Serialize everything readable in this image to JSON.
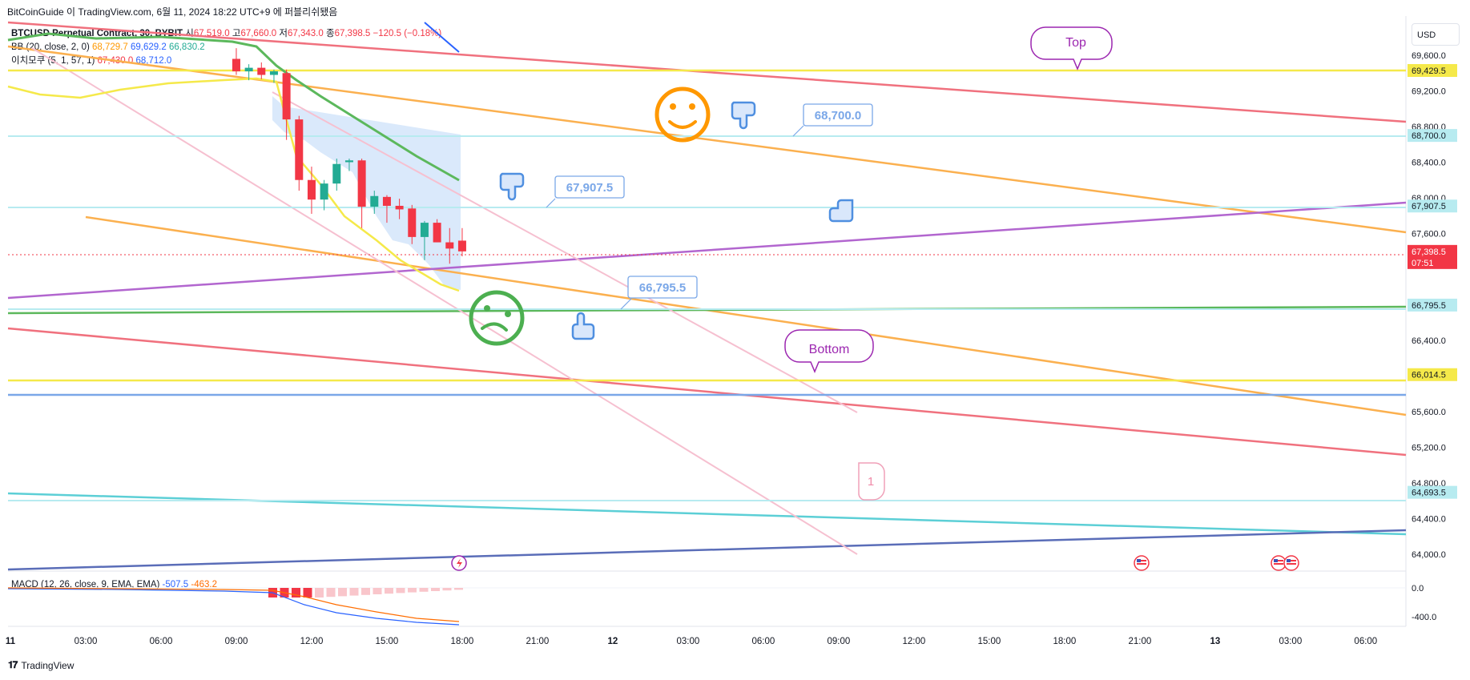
{
  "attribution": "BitCoinGuide 이 TradingView.com, 6월 11, 2024 18:22 UTC+9 에 퍼블리쉬됐음",
  "legend": {
    "symbol": "BTCUSD Perpetual Contract, 30, BYBIT",
    "open_label": "시",
    "open": "67,519.0",
    "high_label": "고",
    "high": "67,660.0",
    "low_label": "저",
    "low": "67,343.0",
    "close_label": "종",
    "close": "67,398.5",
    "change": "−120.5 (−0.18%)",
    "bb": "BB (20, close, 2, 0)",
    "bb_values": [
      "68,729.7",
      "69,629.2",
      "66,830.2"
    ],
    "ichimoku": "이치모쿠 (5, 1, 57, 1)",
    "ichimoku_values": [
      "67,430.0",
      "68,712.0"
    ]
  },
  "macd": {
    "label": "MACD (12, 26, close, 9, EMA, EMA)",
    "values": [
      "-507.5",
      "-463.2"
    ]
  },
  "currency": "USD",
  "footer": "TradingView",
  "colors": {
    "up": "#22ab94",
    "down": "#f23645",
    "line_red": "#f0717e",
    "line_orange": "#fbb04f",
    "line_yellow": "#f5e94a",
    "line_purple": "#b266cf",
    "line_green": "#5cb85c",
    "line_cyan": "#5ccfd6",
    "line_navy": "#5a6db8",
    "line_pink": "#f6c0d0",
    "line_lightblue": "#7aa7e8"
  },
  "chart_data": {
    "type": "candlestick",
    "timeframe": "30",
    "price_axis": {
      "ticks": [
        "69,600.0",
        "69,200.0",
        "68,800.0",
        "68,400.0",
        "68,000.0",
        "67,600.0",
        "66,400.0",
        "66,000.0",
        "65,600.0",
        "65,200.0",
        "64,800.0",
        "64,400.0",
        "64,000.0"
      ],
      "range": [
        63900,
        69800
      ]
    },
    "price_labels": [
      {
        "value": 69429.5,
        "text": "69,429.5",
        "bg": "#f5e94a",
        "fg": "#131722"
      },
      {
        "value": 68700.0,
        "text": "68,700.0",
        "bg": "#b7ebf0",
        "fg": "#131722"
      },
      {
        "value": 67907.5,
        "text": "67,907.5",
        "bg": "#b7ebf0",
        "fg": "#131722"
      },
      {
        "value": 67398.5,
        "text": "67,398.5",
        "bg": "#f23645",
        "fg": "#ffffff",
        "sub": "07:51"
      },
      {
        "value": 66795.5,
        "text": "66,795.5",
        "bg": "#b7ebf0",
        "fg": "#131722"
      },
      {
        "value": 66014.5,
        "text": "66,014.5",
        "bg": "#f5e94a",
        "fg": "#131722"
      },
      {
        "value": 64693.5,
        "text": "64,693.5",
        "bg": "#b7ebf0",
        "fg": "#131722"
      }
    ],
    "time_axis": [
      "11",
      "03:00",
      "06:00",
      "09:00",
      "12:00",
      "15:00",
      "18:00",
      "21:00",
      "12",
      "03:00",
      "06:00",
      "09:00",
      "12:00",
      "15:00",
      "18:00",
      "21:00",
      "13",
      "03:00",
      "06:00"
    ],
    "macd_axis": [
      "0.0",
      "-400.0"
    ],
    "candles": [
      {
        "t": 9.0,
        "o": 69560,
        "h": 69680,
        "l": 69380,
        "c": 69420
      },
      {
        "t": 9.5,
        "o": 69420,
        "h": 69500,
        "l": 69320,
        "c": 69460
      },
      {
        "t": 10.0,
        "o": 69460,
        "h": 69520,
        "l": 69330,
        "c": 69380
      },
      {
        "t": 10.5,
        "o": 69380,
        "h": 69440,
        "l": 69290,
        "c": 69420
      },
      {
        "t": 11.0,
        "o": 69400,
        "h": 69440,
        "l": 68650,
        "c": 68880
      },
      {
        "t": 11.5,
        "o": 68880,
        "h": 68920,
        "l": 68080,
        "c": 68200
      },
      {
        "t": 12.0,
        "o": 68200,
        "h": 68350,
        "l": 67820,
        "c": 67980
      },
      {
        "t": 12.5,
        "o": 67980,
        "h": 68200,
        "l": 67860,
        "c": 68160
      },
      {
        "t": 13.0,
        "o": 68160,
        "h": 68440,
        "l": 68080,
        "c": 68380
      },
      {
        "t": 13.5,
        "o": 68400,
        "h": 68440,
        "l": 68300,
        "c": 68420
      },
      {
        "t": 14.0,
        "o": 68420,
        "h": 68440,
        "l": 67660,
        "c": 67900
      },
      {
        "t": 14.5,
        "o": 67900,
        "h": 68080,
        "l": 67820,
        "c": 68020
      },
      {
        "t": 15.0,
        "o": 68010,
        "h": 68030,
        "l": 67720,
        "c": 67910
      },
      {
        "t": 15.5,
        "o": 67910,
        "h": 67990,
        "l": 67760,
        "c": 67870
      },
      {
        "t": 16.0,
        "o": 67880,
        "h": 67920,
        "l": 67480,
        "c": 67560
      },
      {
        "t": 16.5,
        "o": 67560,
        "h": 67740,
        "l": 67300,
        "c": 67720
      },
      {
        "t": 17.0,
        "o": 67720,
        "h": 67760,
        "l": 67500,
        "c": 67500
      },
      {
        "t": 17.5,
        "o": 67500,
        "h": 67660,
        "l": 67260,
        "c": 67430
      },
      {
        "t": 18.0,
        "o": 67519,
        "h": 67660,
        "l": 67343,
        "c": 67398.5
      }
    ],
    "annotations": [
      {
        "type": "callout",
        "text": "Top",
        "color": "#9c27b0"
      },
      {
        "type": "callout",
        "text": "Bottom",
        "color": "#9c27b0"
      },
      {
        "type": "price-note",
        "text": "68,700.0"
      },
      {
        "type": "price-note",
        "text": "67,907.5"
      },
      {
        "type": "price-note",
        "text": "66,795.5"
      },
      {
        "type": "marker",
        "text": "1"
      }
    ]
  }
}
